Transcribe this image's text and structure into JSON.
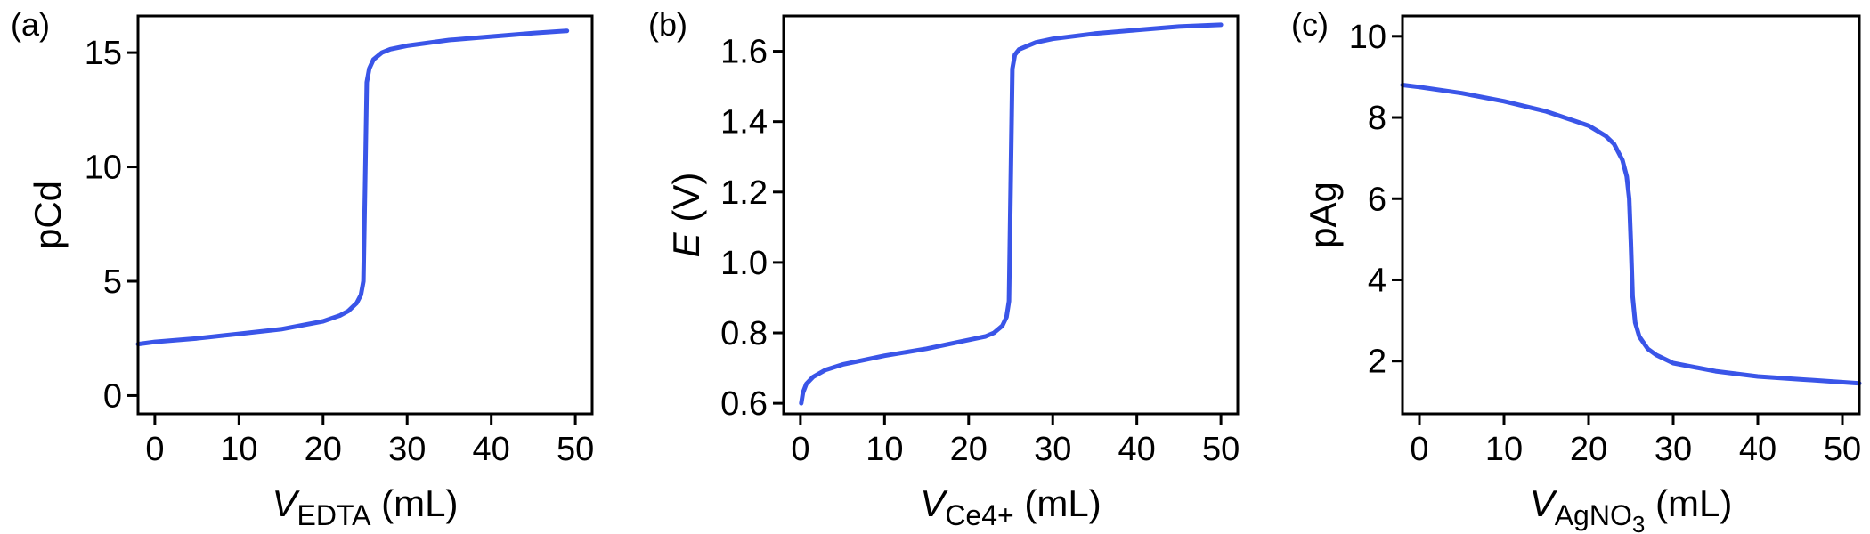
{
  "chart_data": [
    {
      "type": "line",
      "panel_label": "(a)",
      "xlabel": {
        "main": "V",
        "sub": "EDTA",
        "unit": "(mL)"
      },
      "ylabel": {
        "text": "pCd",
        "italic": false
      },
      "xlim": [
        -2,
        52
      ],
      "ylim": [
        -0.8,
        16.6
      ],
      "xticks": [
        0,
        10,
        20,
        30,
        40,
        50
      ],
      "yticks": [
        0,
        5,
        10,
        15
      ],
      "series": [
        {
          "color": "#3a55e8",
          "x": [
            -2,
            0,
            5,
            10,
            15,
            20,
            22,
            23,
            24,
            24.5,
            24.8,
            25,
            25.2,
            25.5,
            26,
            27,
            28,
            30,
            35,
            40,
            45,
            49
          ],
          "y": [
            2.25,
            2.35,
            2.5,
            2.7,
            2.9,
            3.25,
            3.5,
            3.7,
            4.05,
            4.4,
            5.0,
            9.2,
            13.7,
            14.3,
            14.7,
            15.0,
            15.15,
            15.3,
            15.55,
            15.7,
            15.85,
            15.95
          ]
        }
      ]
    },
    {
      "type": "line",
      "panel_label": "(b)",
      "xlabel": {
        "main": "V",
        "sub": "Ce4+",
        "unit": "(mL)"
      },
      "ylabel": {
        "text": "E",
        "italic": true,
        "unit": "(V)"
      },
      "xlim": [
        -2,
        52
      ],
      "ylim": [
        0.57,
        1.7
      ],
      "xticks": [
        0,
        10,
        20,
        30,
        40,
        50
      ],
      "yticks": [
        0.6,
        0.8,
        1.0,
        1.2,
        1.4,
        1.6
      ],
      "ytick_labels": [
        "0.6",
        "0.8",
        "1.0",
        "1.2",
        "1.4",
        "1.6"
      ],
      "series": [
        {
          "color": "#3a55e8",
          "x": [
            0.1,
            0.3,
            0.7,
            1.5,
            3,
            5,
            10,
            15,
            20,
            22,
            23,
            24,
            24.5,
            24.8,
            25,
            25.2,
            25.5,
            26,
            27,
            28,
            30,
            35,
            40,
            45,
            50
          ],
          "y": [
            0.6,
            0.63,
            0.655,
            0.675,
            0.695,
            0.71,
            0.735,
            0.755,
            0.78,
            0.79,
            0.8,
            0.82,
            0.845,
            0.89,
            1.22,
            1.55,
            1.59,
            1.605,
            1.615,
            1.625,
            1.635,
            1.65,
            1.66,
            1.67,
            1.675
          ]
        }
      ]
    },
    {
      "type": "line",
      "panel_label": "(c)",
      "xlabel": {
        "main": "V",
        "sub": "AgNO",
        "sub2": "3",
        "unit": "(mL)"
      },
      "ylabel": {
        "text": "pAg",
        "italic": false
      },
      "xlim": [
        -2,
        52
      ],
      "ylim": [
        0.7,
        10.5
      ],
      "xticks": [
        0,
        10,
        20,
        30,
        40,
        50
      ],
      "yticks": [
        2,
        4,
        6,
        8,
        10
      ],
      "series": [
        {
          "color": "#3a55e8",
          "x": [
            -2,
            0,
            5,
            10,
            15,
            20,
            22,
            23,
            24,
            24.5,
            24.8,
            25,
            25.2,
            25.5,
            26,
            27,
            28,
            30,
            35,
            40,
            45,
            52
          ],
          "y": [
            8.8,
            8.75,
            8.6,
            8.4,
            8.15,
            7.8,
            7.55,
            7.35,
            6.95,
            6.55,
            6.0,
            4.9,
            3.6,
            2.95,
            2.6,
            2.3,
            2.15,
            1.95,
            1.75,
            1.62,
            1.55,
            1.45
          ]
        }
      ]
    }
  ]
}
